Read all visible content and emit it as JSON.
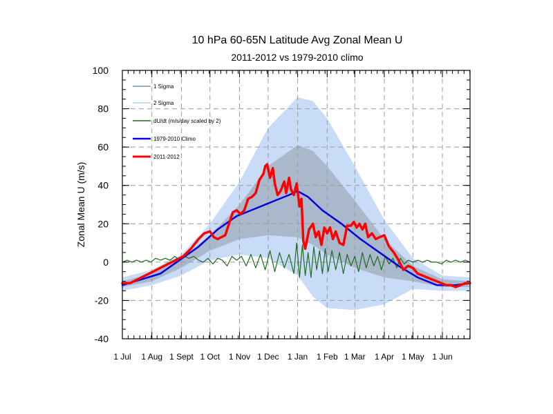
{
  "chart_data": {
    "type": "line",
    "title": "10 hPa 60-65N Latitude Avg Zonal Mean U",
    "subtitle": "2011-2012 vs 1979-2010 climo",
    "ylabel": "Zonal Mean U (m/s)",
    "xlabel": "",
    "ylim": [
      -40,
      100
    ],
    "yticks": [
      -40,
      -20,
      0,
      20,
      40,
      60,
      80,
      100
    ],
    "xrange_days": [
      0,
      365
    ],
    "xticks": [
      {
        "label": "1 Jul",
        "day": 0
      },
      {
        "label": "1 Aug",
        "day": 31
      },
      {
        "label": "1 Sept",
        "day": 62
      },
      {
        "label": "1 Oct",
        "day": 92
      },
      {
        "label": "1 Nov",
        "day": 123
      },
      {
        "label": "1 Dec",
        "day": 153
      },
      {
        "label": "1 Jan",
        "day": 184
      },
      {
        "label": "1 Feb",
        "day": 215
      },
      {
        "label": "1 Mar",
        "day": 244
      },
      {
        "label": "1 Apr",
        "day": 275
      },
      {
        "label": "1 May",
        "day": 305
      },
      {
        "label": "1 Jun",
        "day": 336
      }
    ],
    "grid": true,
    "legend_position": "top-left",
    "legend": [
      {
        "label": "1 Sigma",
        "color": "#9ab0c8"
      },
      {
        "label": "2 Sigma",
        "color": "#c8dcf8"
      },
      {
        "label": "dU/dt (m/s/day scaled by 2)",
        "color": "#1e6a1e"
      },
      {
        "label": "1979-2010 Climo",
        "color": "#0000e0"
      },
      {
        "label": "2011-2012",
        "color": "#ff0000"
      }
    ],
    "series": [
      {
        "name": "1979-2010 Climo",
        "color": "#0000e0",
        "x": [
          0,
          20,
          40,
          60,
          80,
          100,
          120,
          140,
          160,
          175,
          184,
          195,
          210,
          230,
          250,
          270,
          290,
          310,
          330,
          350,
          365
        ],
        "y": [
          -12,
          -9,
          -6,
          1,
          8,
          17,
          24,
          28,
          32,
          35,
          37,
          34,
          27,
          20,
          12,
          5,
          -2,
          -8,
          -12,
          -12,
          -11
        ]
      },
      {
        "name": "2011-2012",
        "color": "#ff0000",
        "x": [
          0,
          8,
          16,
          24,
          32,
          40,
          48,
          56,
          64,
          72,
          80,
          86,
          92,
          96,
          100,
          104,
          108,
          112,
          116,
          120,
          124,
          128,
          132,
          136,
          140,
          144,
          148,
          150,
          152,
          155,
          158,
          160,
          163,
          166,
          170,
          172,
          175,
          177,
          180,
          183,
          186,
          188,
          190,
          192,
          196,
          200,
          203,
          206,
          209,
          212,
          215,
          218,
          221,
          224,
          228,
          232,
          236,
          240,
          243,
          246,
          249,
          252,
          255,
          258,
          262,
          266,
          270,
          275,
          280,
          285,
          290,
          295,
          300,
          305,
          310,
          315,
          320,
          325,
          330,
          335,
          340,
          345,
          350,
          355,
          360,
          365
        ],
        "y": [
          -11,
          -11,
          -9,
          -7,
          -5,
          -3,
          -1,
          1,
          3,
          7,
          12,
          15,
          16,
          13,
          12,
          13,
          14,
          20,
          26,
          27,
          25,
          27,
          33,
          34,
          36,
          43,
          46,
          50,
          51,
          44,
          49,
          41,
          35,
          37,
          42,
          36,
          44,
          38,
          35,
          41,
          29,
          33,
          11,
          7,
          17,
          20,
          13,
          16,
          9,
          18,
          15,
          18,
          12,
          16,
          10,
          9,
          19,
          19,
          21,
          18,
          20,
          17,
          20,
          13,
          15,
          12,
          13,
          14,
          8,
          5,
          1,
          -4,
          -2,
          -3,
          -6,
          -7,
          -8,
          -9,
          -10,
          -11,
          -12,
          -12,
          -13,
          -12,
          -11,
          -11
        ]
      },
      {
        "name": "dU/dt (m/s/day scaled by 2)",
        "color": "#1e6a1e",
        "x": [
          0,
          5,
          10,
          15,
          20,
          25,
          30,
          35,
          40,
          45,
          50,
          55,
          60,
          65,
          70,
          75,
          80,
          85,
          90,
          95,
          100,
          105,
          110,
          115,
          120,
          125,
          130,
          135,
          140,
          145,
          150,
          155,
          160,
          165,
          170,
          175,
          180,
          183,
          186,
          189,
          192,
          195,
          198,
          201,
          204,
          207,
          210,
          213,
          216,
          220,
          224,
          228,
          232,
          236,
          240,
          244,
          248,
          252,
          256,
          260,
          264,
          268,
          272,
          276,
          280,
          284,
          288,
          292,
          296,
          300,
          305,
          310,
          315,
          320,
          325,
          330,
          335,
          340,
          345,
          350,
          355,
          360,
          365
        ],
        "y": [
          0,
          1,
          0,
          1,
          0,
          1,
          0,
          2,
          1,
          2,
          1,
          3,
          1,
          3,
          2,
          3,
          1,
          0,
          2,
          -1,
          2,
          1,
          -2,
          3,
          1,
          3,
          -2,
          4,
          -3,
          4,
          -4,
          6,
          -5,
          5,
          -3,
          4,
          -6,
          10,
          -8,
          9,
          -7,
          5,
          -8,
          8,
          -4,
          6,
          -6,
          7,
          -5,
          6,
          -4,
          5,
          -6,
          4,
          -2,
          3,
          -5,
          5,
          -3,
          4,
          -2,
          3,
          -4,
          3,
          -1,
          2,
          -3,
          2,
          -1,
          1,
          0,
          1,
          0,
          1,
          0,
          0,
          -1,
          1,
          0,
          1,
          0,
          1,
          0
        ]
      }
    ],
    "bands": [
      {
        "name": "2 Sigma",
        "color": "#c8dcf8",
        "x": [
          0,
          31,
          62,
          92,
          123,
          153,
          184,
          200,
          215,
          244,
          275,
          305,
          336,
          365
        ],
        "upper": [
          -8,
          -4,
          4,
          20,
          42,
          70,
          86,
          84,
          75,
          50,
          22,
          2,
          -7,
          -8
        ],
        "lower": [
          -15,
          -12,
          -7,
          1,
          4,
          2,
          -7,
          -18,
          -24,
          -25,
          -22,
          -14,
          -15,
          -15
        ]
      },
      {
        "name": "1 Sigma",
        "color": "#aab8cc",
        "x": [
          0,
          31,
          62,
          92,
          123,
          153,
          184,
          200,
          215,
          244,
          275,
          305,
          336,
          365
        ],
        "upper": [
          -10,
          -6,
          2,
          14,
          30,
          50,
          61,
          58,
          50,
          32,
          12,
          -2,
          -9,
          -10
        ],
        "lower": [
          -13,
          -10,
          -3,
          6,
          12,
          14,
          13,
          9,
          4,
          -3,
          -8,
          -10,
          -13,
          -13
        ]
      }
    ]
  }
}
